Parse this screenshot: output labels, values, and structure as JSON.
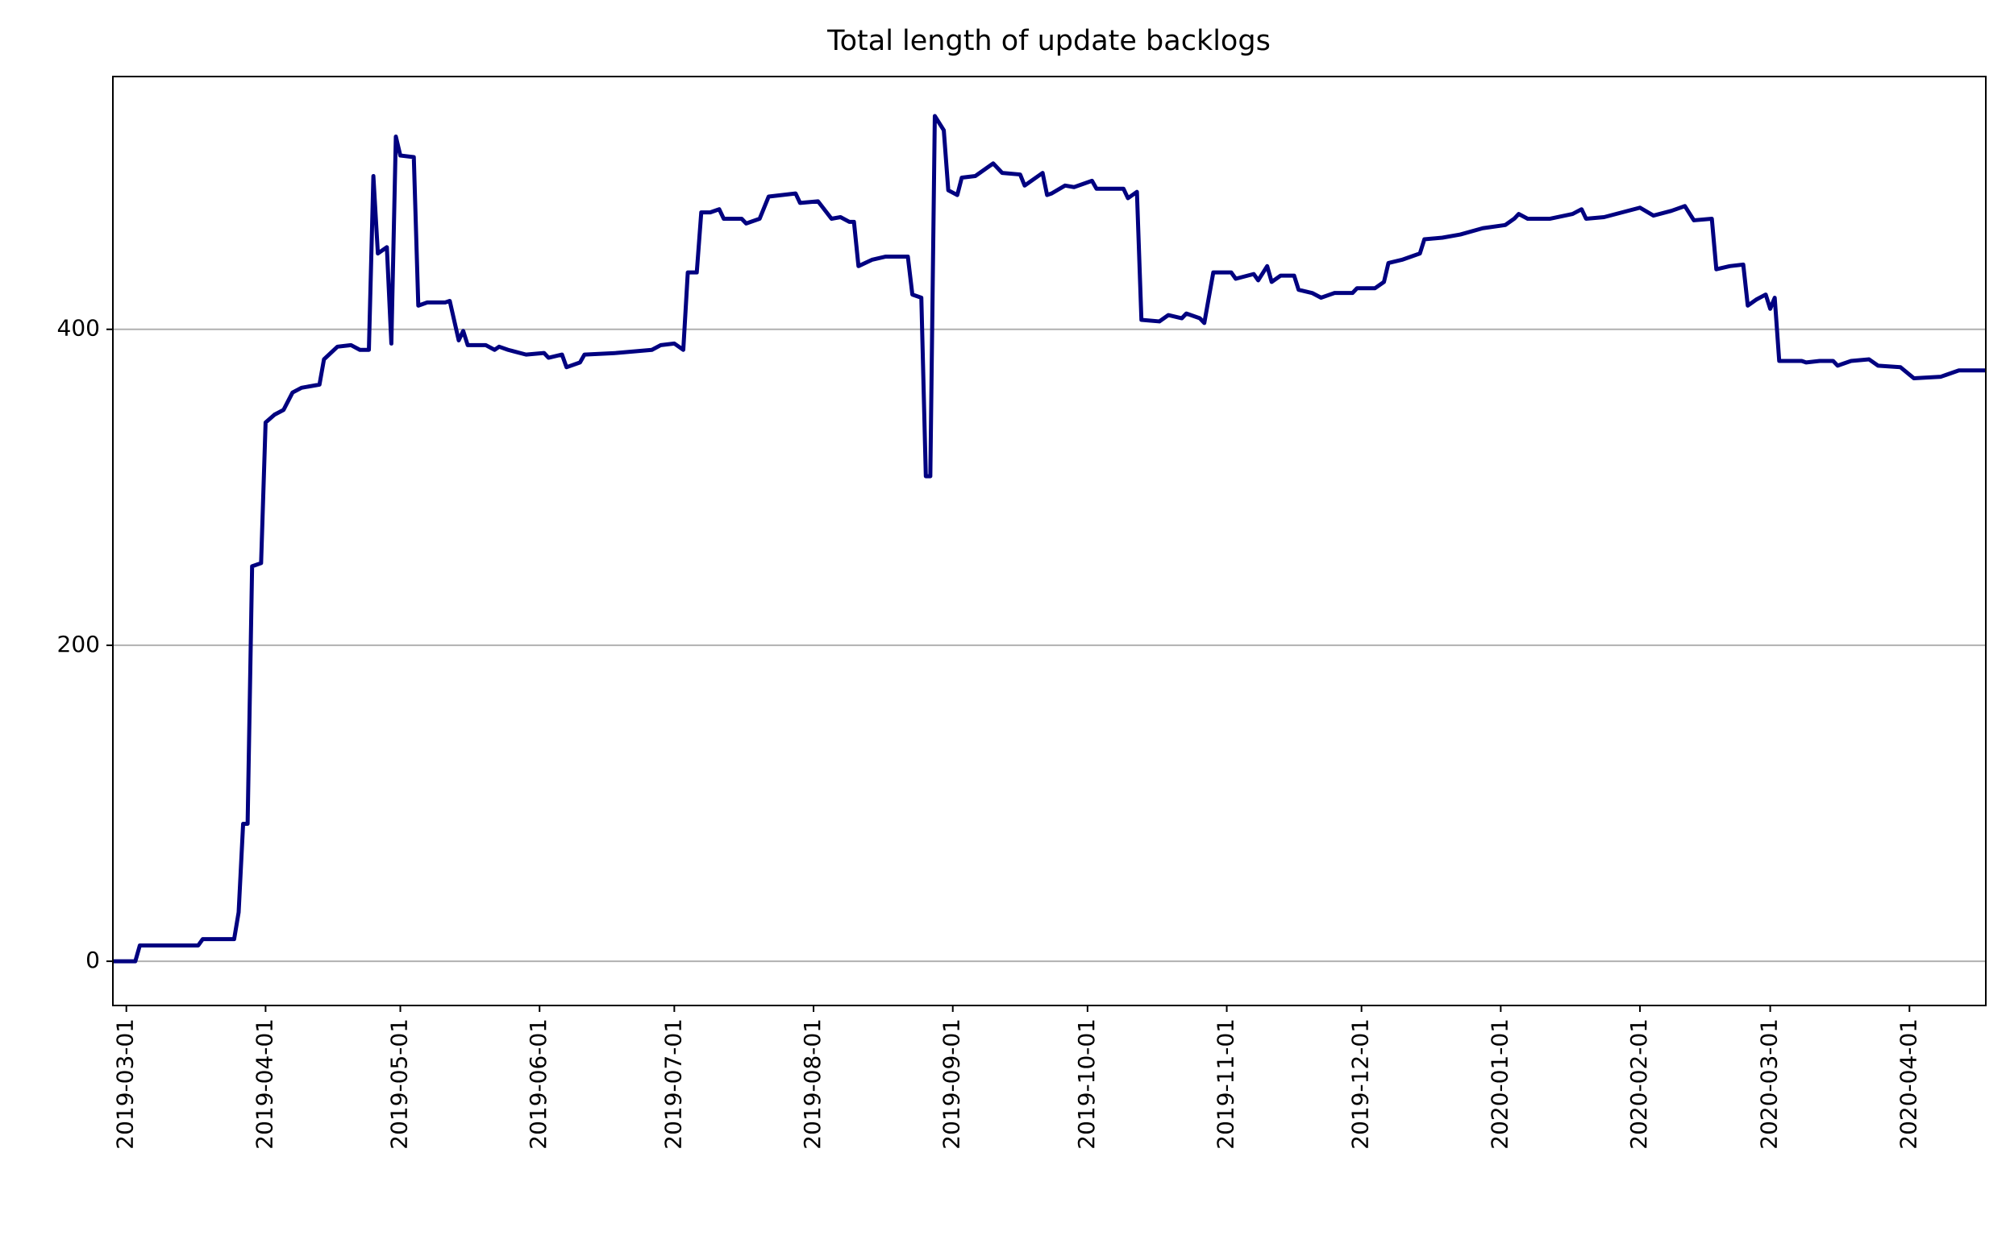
{
  "chart_data": {
    "type": "line",
    "title": "Total length of update backlogs",
    "x": [
      "2019-02-26",
      "2019-03-03",
      "2019-03-04",
      "2019-03-17",
      "2019-03-18",
      "2019-03-25",
      "2019-03-26",
      "2019-03-27",
      "2019-03-28",
      "2019-03-29",
      "2019-03-31",
      "2019-04-01",
      "2019-04-03",
      "2019-04-05",
      "2019-04-07",
      "2019-04-09",
      "2019-04-13",
      "2019-04-14",
      "2019-04-17",
      "2019-04-20",
      "2019-04-22",
      "2019-04-24",
      "2019-04-25",
      "2019-04-26",
      "2019-04-27",
      "2019-04-28",
      "2019-04-29",
      "2019-04-30",
      "2019-05-01",
      "2019-05-04",
      "2019-05-05",
      "2019-05-07",
      "2019-05-11",
      "2019-05-12",
      "2019-05-14",
      "2019-05-15",
      "2019-05-16",
      "2019-05-20",
      "2019-05-22",
      "2019-05-23",
      "2019-05-25",
      "2019-05-29",
      "2019-06-02",
      "2019-06-03",
      "2019-06-06",
      "2019-06-07",
      "2019-06-10",
      "2019-06-11",
      "2019-06-18",
      "2019-06-26",
      "2019-06-28",
      "2019-07-01",
      "2019-07-03",
      "2019-07-04",
      "2019-07-06",
      "2019-07-07",
      "2019-07-09",
      "2019-07-11",
      "2019-07-12",
      "2019-07-16",
      "2019-07-17",
      "2019-07-20",
      "2019-07-22",
      "2019-07-28",
      "2019-07-29",
      "2019-08-02",
      "2019-08-05",
      "2019-08-07",
      "2019-08-09",
      "2019-08-10",
      "2019-08-11",
      "2019-08-14",
      "2019-08-17",
      "2019-08-22",
      "2019-08-23",
      "2019-08-25",
      "2019-08-26",
      "2019-08-27",
      "2019-08-28",
      "2019-08-30",
      "2019-08-31",
      "2019-09-02",
      "2019-09-03",
      "2019-09-06",
      "2019-09-10",
      "2019-09-12",
      "2019-09-16",
      "2019-09-17",
      "2019-09-21",
      "2019-09-22",
      "2019-09-23",
      "2019-09-26",
      "2019-09-28",
      "2019-10-02",
      "2019-10-03",
      "2019-10-09",
      "2019-10-10",
      "2019-10-12",
      "2019-10-13",
      "2019-10-17",
      "2019-10-19",
      "2019-10-22",
      "2019-10-23",
      "2019-10-26",
      "2019-10-27",
      "2019-10-29",
      "2019-11-02",
      "2019-11-03",
      "2019-11-07",
      "2019-11-08",
      "2019-11-10",
      "2019-11-11",
      "2019-11-13",
      "2019-11-16",
      "2019-11-17",
      "2019-11-20",
      "2019-11-22",
      "2019-11-25",
      "2019-11-29",
      "2019-11-30",
      "2019-12-04",
      "2019-12-06",
      "2019-12-07",
      "2019-12-10",
      "2019-12-14",
      "2019-12-15",
      "2019-12-19",
      "2019-12-23",
      "2019-12-28",
      "2020-01-02",
      "2020-01-04",
      "2020-01-05",
      "2020-01-07",
      "2020-01-12",
      "2020-01-17",
      "2020-01-19",
      "2020-01-20",
      "2020-01-24",
      "2020-01-28",
      "2020-02-01",
      "2020-02-04",
      "2020-02-08",
      "2020-02-11",
      "2020-02-13",
      "2020-02-17",
      "2020-02-18",
      "2020-02-21",
      "2020-02-24",
      "2020-02-25",
      "2020-02-27",
      "2020-02-29",
      "2020-03-01",
      "2020-03-02",
      "2020-03-03",
      "2020-03-08",
      "2020-03-09",
      "2020-03-12",
      "2020-03-15",
      "2020-03-16",
      "2020-03-19",
      "2020-03-23",
      "2020-03-25",
      "2020-03-30",
      "2020-04-02",
      "2020-04-08",
      "2020-04-12",
      "2020-04-18"
    ],
    "series": [
      {
        "color": "#000080",
        "values": [
          0,
          0,
          10,
          10,
          14,
          14,
          31,
          87,
          87,
          250,
          252,
          341,
          346,
          349,
          360,
          363,
          365,
          381,
          389,
          390,
          387,
          387,
          497,
          448,
          450,
          452,
          391,
          522,
          510,
          509,
          415,
          417,
          417,
          418,
          393,
          399,
          390,
          390,
          387,
          389,
          387,
          384,
          385,
          382,
          384,
          376,
          379,
          384,
          385,
          387,
          390,
          391,
          387,
          436,
          436,
          474,
          474,
          476,
          470,
          470,
          467,
          470,
          484,
          486,
          480,
          481,
          470,
          471,
          468,
          468,
          440,
          444,
          446,
          446,
          422,
          420,
          307,
          307,
          535,
          526,
          488,
          485,
          496,
          497,
          505,
          499,
          498,
          491,
          499,
          485,
          486,
          491,
          490,
          494,
          489,
          489,
          483,
          487,
          406,
          405,
          409,
          407,
          410,
          407,
          404,
          436,
          436,
          432,
          435,
          431,
          440,
          430,
          434,
          434,
          425,
          423,
          420,
          423,
          423,
          426,
          426,
          430,
          442,
          444,
          448,
          457,
          458,
          460,
          464,
          466,
          470,
          473,
          470,
          470,
          473,
          476,
          470,
          471,
          474,
          477,
          472,
          475,
          478,
          469,
          470,
          438,
          440,
          441,
          415,
          419,
          422,
          413,
          420,
          380,
          380,
          379,
          380,
          380,
          377,
          380,
          381,
          377,
          376,
          369,
          370,
          374,
          374
        ]
      }
    ],
    "xlim": [
      "2019-02-26",
      "2020-04-18"
    ],
    "xticks": [
      "2019-03-01",
      "2019-04-01",
      "2019-05-01",
      "2019-06-01",
      "2019-07-01",
      "2019-08-01",
      "2019-09-01",
      "2019-10-01",
      "2019-11-01",
      "2019-12-01",
      "2020-01-01",
      "2020-02-01",
      "2020-03-01",
      "2020-04-01"
    ],
    "ylim": [
      -28,
      560
    ],
    "yticks": [
      0,
      200,
      400
    ],
    "grid": "y"
  }
}
